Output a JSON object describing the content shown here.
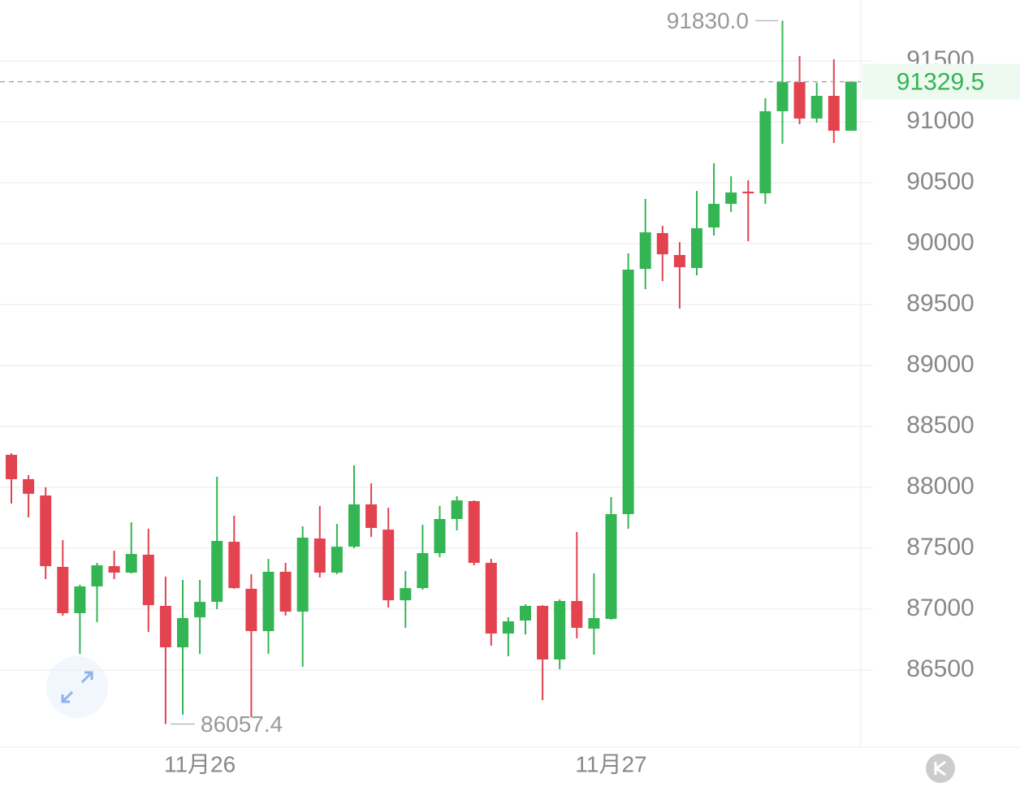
{
  "chart_data": {
    "type": "candlestick",
    "categories": [
      null,
      null,
      null,
      null,
      null,
      null,
      null,
      null,
      null,
      null,
      null,
      "11月26",
      null,
      null,
      null,
      null,
      null,
      null,
      null,
      null,
      null,
      null,
      null,
      null,
      null,
      null,
      null,
      null,
      null,
      null,
      null,
      null,
      null,
      null,
      null,
      "11月27",
      null,
      null,
      null,
      null,
      null,
      null,
      null,
      null,
      null,
      null,
      null,
      null,
      null,
      null
    ],
    "open": [
      88267,
      88067,
      87933,
      87347,
      86967,
      87187,
      87353,
      87300,
      87447,
      87027,
      86687,
      86933,
      87060,
      87553,
      87167,
      86820,
      87307,
      86980,
      87580,
      87300,
      87513,
      87860,
      87653,
      87073,
      87173,
      87460,
      87740,
      87887,
      87380,
      86800,
      86907,
      87027,
      86587,
      87067,
      86840,
      86920,
      87780,
      89793,
      90087,
      89907,
      89800,
      90133,
      90327,
      90427,
      90413,
      91087,
      91327,
      91027,
      91213,
      90927
    ],
    "high": [
      88280,
      88100,
      88000,
      87567,
      87200,
      87380,
      87480,
      87713,
      87660,
      87267,
      87240,
      87240,
      88087,
      87767,
      87287,
      87413,
      87380,
      87680,
      87847,
      87700,
      88180,
      88033,
      87833,
      87313,
      87693,
      87847,
      87927,
      87893,
      87413,
      86933,
      87040,
      87033,
      87080,
      87633,
      87293,
      87920,
      89920,
      90367,
      90147,
      90013,
      90433,
      90660,
      90553,
      90520,
      91193,
      91830,
      91540,
      91320,
      91513,
      91329.5
    ],
    "low": [
      87867,
      87753,
      87247,
      86947,
      86633,
      86893,
      87247,
      87293,
      86813,
      86057.4,
      86133,
      86633,
      87000,
      87167,
      86113,
      86633,
      86947,
      86527,
      87260,
      87287,
      87500,
      87593,
      87013,
      86847,
      87160,
      87427,
      87647,
      87360,
      86700,
      86613,
      86793,
      86253,
      86507,
      86760,
      86627,
      86913,
      87660,
      89627,
      89693,
      89467,
      89740,
      90067,
      90260,
      90020,
      90327,
      90820,
      90980,
      90993,
      90827,
      90927
    ],
    "close": [
      88067,
      87947,
      87353,
      86967,
      87187,
      87360,
      87300,
      87453,
      87033,
      86687,
      86927,
      87060,
      87560,
      87173,
      86820,
      87307,
      86980,
      87587,
      87300,
      87513,
      87860,
      87667,
      87073,
      87173,
      87460,
      87740,
      87893,
      87380,
      86800,
      86900,
      87027,
      86587,
      87067,
      86847,
      86927,
      87780,
      89787,
      90093,
      89913,
      89807,
      90127,
      90327,
      90420,
      90413,
      91087,
      91327,
      91027,
      91213,
      90927,
      91329.5
    ],
    "up_color": "#34b554",
    "down_color": "#e2434f",
    "ylim": [
      85867,
      92000
    ],
    "yticks": [
      86500,
      87000,
      87500,
      88000,
      88500,
      89000,
      89500,
      90000,
      90500,
      91000,
      91500
    ],
    "grid": true,
    "last_price": 91329.5,
    "max_label": {
      "value": 91830,
      "label": "91830.0"
    },
    "min_label": {
      "value": 86057.4,
      "label": "86057.4"
    }
  }
}
